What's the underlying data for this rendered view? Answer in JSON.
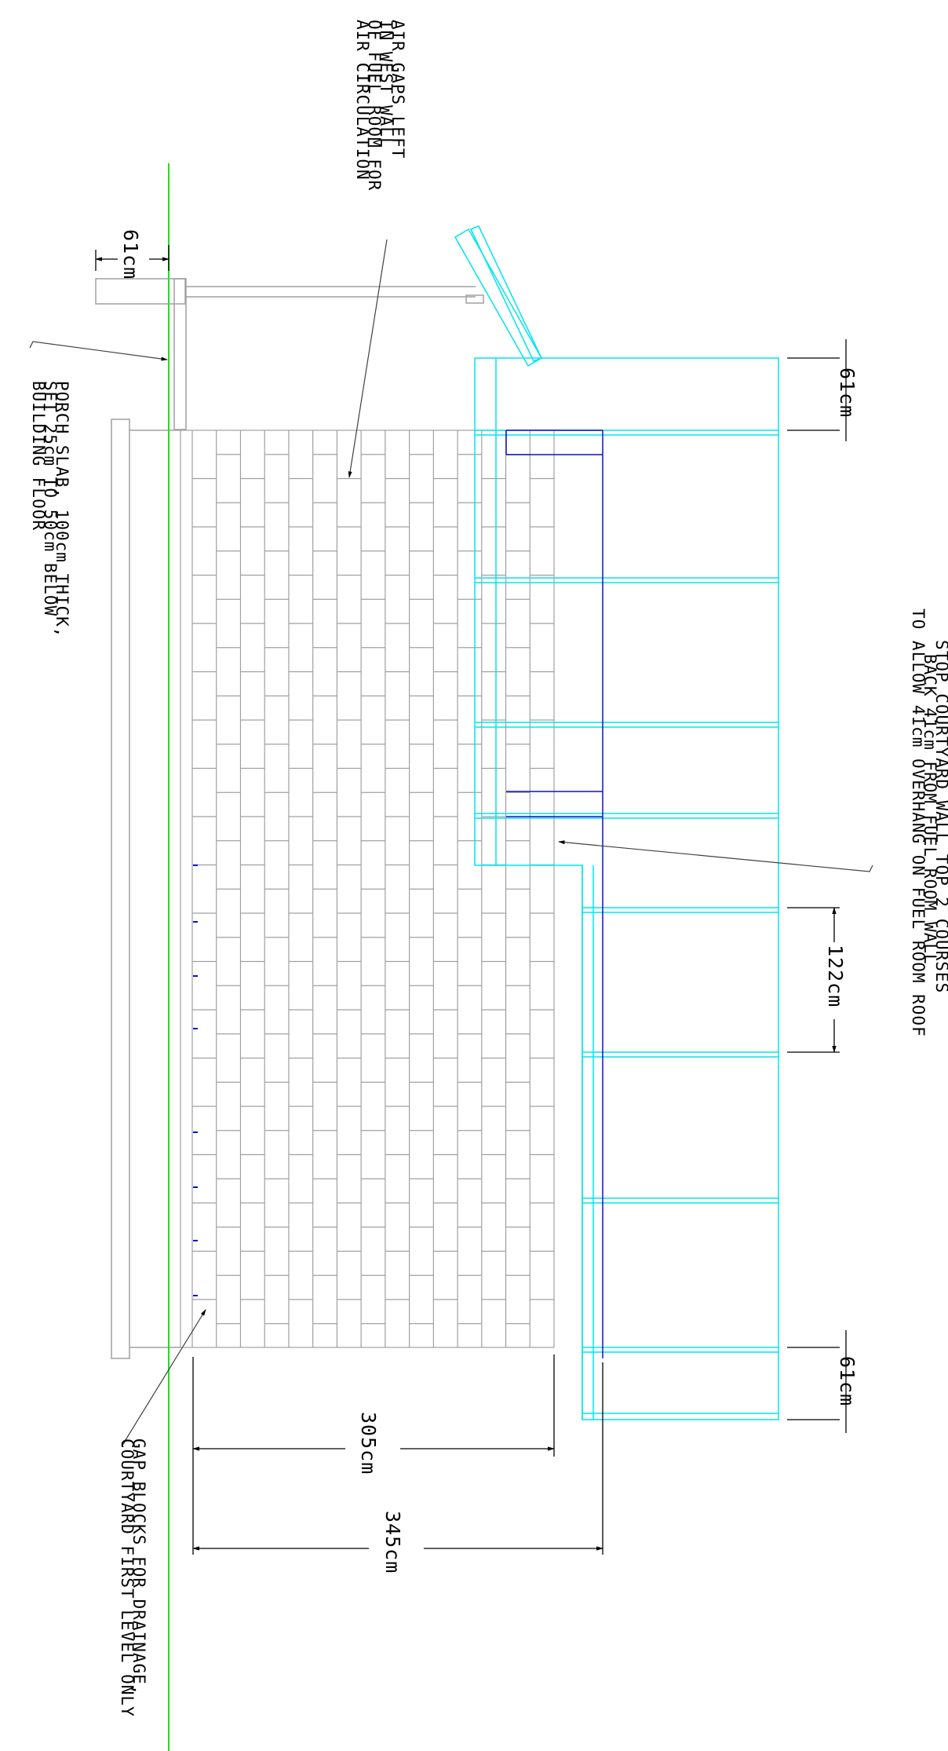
{
  "colors": {
    "background": "#ffffff",
    "wall_grey": "#a0a0a0",
    "courtyard_cyan": "#00e5ee",
    "ground_green": "#22dd22",
    "inner_blue": "#1010c0",
    "annotation_black": "#000000"
  },
  "notes": {
    "air_gaps": [
      "AIR GAPS LEFT",
      "IN WEST WALL",
      "OF FUEL ROOM FOR",
      "AIR CIRCULATION"
    ],
    "porch_slab": [
      "PORCH SLAB, 100cm THICK,",
      "SET 25cm TO 50cm BELOW",
      "BUILDING FLOOR"
    ],
    "stop_courtyard": [
      "STOP COURTYARD WALL TOP 2 COURSES",
      "BACK 41cm FROM FUEL ROOM WALL",
      "TO ALLOW 41cm OVERHANG ON FUEL ROOM ROOF"
    ],
    "gap_blocks": [
      "GAP BLOCKS FOR DRAINAGE,",
      "COURTYARD FIRST LEVEL ONLY"
    ]
  },
  "dimensions": {
    "roof_overhang": "61cm",
    "courtyard_top": "61cm",
    "courtyard_course": "122cm",
    "courtyard_bottom": "61cm",
    "fuel_room_depth": "305cm",
    "total_depth": "345cm"
  }
}
